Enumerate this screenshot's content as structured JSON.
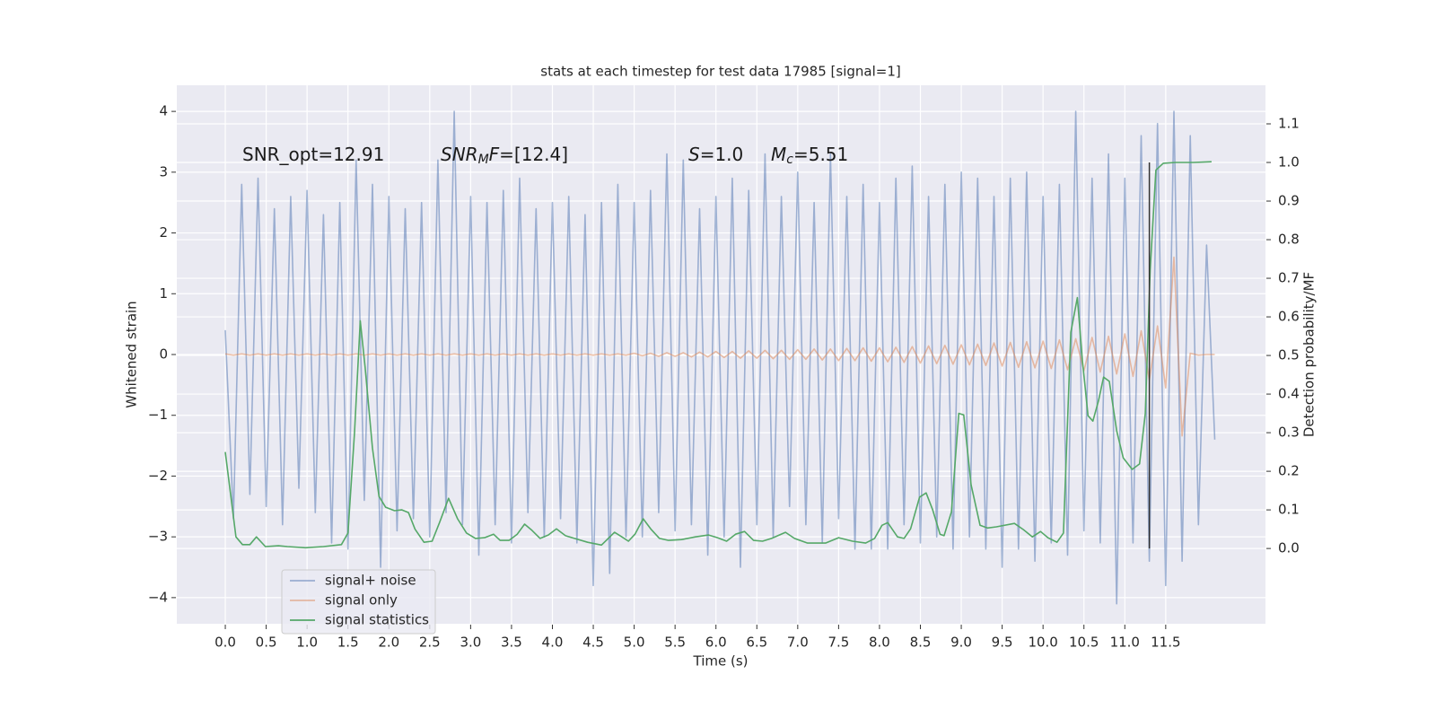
{
  "chart_data": {
    "type": "line",
    "title": "stats at each timestep for test data 17985 [signal=1]",
    "x_label": "Time (s)",
    "y_label": "Whitened strain",
    "y2_label": "Detection probability/MF",
    "grid": true,
    "legend": "lower left",
    "xlim": [
      -0.593,
      12.72
    ],
    "ylim": [
      -4.43,
      4.43
    ],
    "y2lim": [
      -0.195,
      1.2
    ],
    "xticks": [
      {
        "value": 0,
        "label": "0.0"
      },
      0.5,
      {
        "value": 1,
        "label": "1.0"
      },
      1.5,
      {
        "value": 2,
        "label": "2.0"
      },
      2.5,
      {
        "value": 3,
        "label": "3.0"
      },
      3.5,
      {
        "value": 4,
        "label": "4.0"
      },
      4.5,
      {
        "value": 5,
        "label": "5.0"
      },
      5.5,
      {
        "value": 6,
        "label": "6.0"
      },
      6.5,
      {
        "value": 7,
        "label": "7.0"
      },
      7.5,
      {
        "value": 8,
        "label": "8.0"
      },
      8.5,
      {
        "value": 9,
        "label": "9.0"
      },
      9.5,
      {
        "value": 10,
        "label": "10.0"
      },
      10.5,
      {
        "value": 11,
        "label": "11.0"
      },
      11.5
    ],
    "yticks": [
      {
        "value": -4,
        "label": "−4"
      },
      {
        "value": -3,
        "label": "−3"
      },
      {
        "value": -2,
        "label": "−2"
      },
      {
        "value": -1,
        "label": "−1"
      },
      0,
      1,
      2,
      3,
      4
    ],
    "y2ticks": [
      {
        "value": 0,
        "label": "0.0"
      },
      0.1,
      0.2,
      0.3,
      0.4,
      0.5,
      0.6,
      0.7,
      0.8,
      0.9,
      {
        "value": 1,
        "label": "1.0"
      },
      1.1
    ],
    "x": [
      0,
      0.1,
      0.2,
      0.3,
      0.4,
      0.5,
      0.6,
      0.7,
      0.8,
      0.9,
      1,
      1.1,
      1.2,
      1.3,
      1.4,
      1.5,
      1.6,
      1.7,
      1.8,
      1.9,
      2,
      2.1,
      2.2,
      2.3,
      2.4,
      2.5,
      2.6,
      2.7,
      2.8,
      2.9,
      3,
      3.1,
      3.2,
      3.3,
      3.4,
      3.5,
      3.6,
      3.7,
      3.8,
      3.9,
      4,
      4.1,
      4.2,
      4.3,
      4.4,
      4.5,
      4.6,
      4.7,
      4.8,
      4.9,
      5,
      5.1,
      5.2,
      5.3,
      5.4,
      5.5,
      5.6,
      5.7,
      5.8,
      5.9,
      6,
      6.1,
      6.2,
      6.3,
      6.4,
      6.5,
      6.6,
      6.7,
      6.8,
      6.9,
      7,
      7.1,
      7.2,
      7.3,
      7.4,
      7.5,
      7.6,
      7.7,
      7.8,
      7.9,
      8,
      8.1,
      8.2,
      8.3,
      8.4,
      8.5,
      8.6,
      8.7,
      8.8,
      8.9,
      9,
      9.1,
      9.2,
      9.3,
      9.4,
      9.5,
      9.6,
      9.7,
      9.8,
      9.9,
      10,
      10.1,
      10.2,
      10.3,
      10.4,
      10.5,
      10.6,
      10.7,
      10.8,
      10.9,
      11,
      11.1,
      11.2,
      11.3,
      11.4,
      11.5,
      11.6,
      11.7,
      11.8,
      11.9,
      12,
      12.1
    ],
    "series": [
      {
        "name": "signal+ noise",
        "color": "#4c72b0",
        "alpha": 0.5,
        "values": [
          0.4,
          -2.7,
          2.8,
          -2.3,
          2.9,
          -2.5,
          2.4,
          -2.8,
          2.6,
          -2.2,
          2.7,
          -2.6,
          2.3,
          -3.1,
          2.5,
          -3.2,
          3.2,
          -2.4,
          2.8,
          -3.5,
          2.6,
          -2.9,
          2.4,
          -2.7,
          2.5,
          -3.0,
          3.2,
          -2.6,
          4.0,
          -2.8,
          2.6,
          -3.3,
          2.5,
          -2.8,
          2.7,
          -3.1,
          2.9,
          -2.6,
          2.4,
          -3.0,
          2.5,
          -2.7,
          2.6,
          -3.1,
          2.3,
          -3.8,
          2.5,
          -3.6,
          2.8,
          -3.0,
          2.5,
          -3.0,
          2.7,
          -2.6,
          3.3,
          -2.9,
          3.2,
          -2.8,
          2.4,
          -3.3,
          2.6,
          -3.0,
          2.9,
          -3.5,
          2.7,
          -2.8,
          3.3,
          -3.0,
          2.6,
          -2.5,
          3.0,
          -2.8,
          2.5,
          -3.1,
          3.3,
          -2.7,
          2.6,
          -3.2,
          2.8,
          -3.2,
          2.5,
          -3.2,
          2.9,
          -2.8,
          3.1,
          -3.1,
          2.6,
          -3.0,
          2.8,
          -3.2,
          3.0,
          -3.0,
          2.9,
          -3.2,
          2.6,
          -3.5,
          2.9,
          -3.2,
          3.0,
          -3.4,
          2.6,
          -3.1,
          2.8,
          -3.3,
          4.0,
          -2.9,
          2.9,
          -3.1,
          3.3,
          -4.1,
          2.9,
          -3.1,
          3.6,
          -3.4,
          3.8,
          -3.8,
          4.0,
          -3.4,
          3.6,
          -2.8,
          1.8,
          -1.4
        ]
      },
      {
        "name": "signal only",
        "color": "#dd8452",
        "alpha": 0.5,
        "values": [
          0.01,
          -0.01,
          0.01,
          -0.01,
          0.01,
          -0.01,
          0.01,
          -0.01,
          0.01,
          -0.01,
          0.01,
          -0.01,
          0.01,
          -0.01,
          0.01,
          -0.01,
          0.01,
          -0.01,
          0.01,
          -0.01,
          0.01,
          -0.01,
          0.01,
          -0.01,
          0.01,
          -0.01,
          0.01,
          -0.01,
          0.01,
          -0.01,
          0.01,
          -0.01,
          0.01,
          -0.01,
          0.01,
          -0.01,
          0.01,
          -0.01,
          0.01,
          -0.01,
          0.01,
          -0.01,
          0.01,
          -0.01,
          0.01,
          -0.01,
          0.01,
          -0.01,
          0.01,
          -0.01,
          0.02,
          -0.02,
          0.02,
          -0.03,
          0.03,
          -0.03,
          0.03,
          -0.04,
          0.04,
          -0.04,
          0.05,
          -0.05,
          0.05,
          -0.06,
          0.06,
          -0.06,
          0.07,
          -0.07,
          0.07,
          -0.08,
          0.08,
          -0.08,
          0.09,
          -0.09,
          0.09,
          -0.1,
          0.1,
          -0.1,
          0.11,
          -0.11,
          0.11,
          -0.12,
          0.12,
          -0.13,
          0.13,
          -0.14,
          0.14,
          -0.15,
          0.15,
          -0.16,
          0.16,
          -0.17,
          0.17,
          -0.18,
          0.19,
          -0.19,
          0.2,
          -0.21,
          0.21,
          -0.22,
          0.22,
          -0.23,
          0.24,
          -0.25,
          0.26,
          -0.27,
          0.28,
          -0.29,
          0.3,
          -0.32,
          0.34,
          -0.36,
          0.39,
          -0.42,
          0.47,
          -0.55,
          1.6,
          -1.34,
          0.02,
          -0.01,
          0,
          0
        ]
      },
      {
        "name": "signal statistics",
        "color": "#55a868",
        "axis": "y2",
        "x": [
          0,
          0.13,
          0.21,
          0.3,
          0.38,
          0.49,
          0.65,
          0.76,
          0.98,
          1.2,
          1.42,
          1.5,
          1.58,
          1.65,
          1.71,
          1.8,
          1.88,
          1.96,
          2.07,
          2.16,
          2.24,
          2.32,
          2.43,
          2.53,
          2.62,
          2.73,
          2.84,
          2.95,
          3.06,
          3.17,
          3.28,
          3.36,
          3.47,
          3.57,
          3.66,
          3.75,
          3.85,
          3.95,
          4.05,
          4.16,
          4.27,
          4.43,
          4.6,
          4.76,
          4.85,
          4.93,
          5.01,
          5.11,
          5.21,
          5.31,
          5.42,
          5.58,
          5.75,
          5.91,
          6.02,
          6.13,
          6.24,
          6.35,
          6.46,
          6.57,
          6.68,
          6.85,
          6.96,
          7.12,
          7.34,
          7.5,
          7.67,
          7.83,
          7.94,
          8.03,
          8.1,
          8.22,
          8.3,
          8.38,
          8.49,
          8.57,
          8.65,
          8.74,
          8.79,
          8.88,
          8.97,
          9.03,
          9.12,
          9.23,
          9.32,
          9.43,
          9.65,
          9.76,
          9.87,
          9.97,
          10.06,
          10.17,
          10.25,
          10.34,
          10.42,
          10.48,
          10.55,
          10.61,
          10.68,
          10.74,
          10.81,
          10.9,
          10.98,
          11.09,
          11.18,
          11.25,
          11.31,
          11.38,
          11.47,
          11.62,
          11.84,
          12.06
        ],
        "values": [
          0.25,
          0.03,
          0.01,
          0.01,
          0.03,
          0.005,
          0.007,
          0.005,
          0.002,
          0.005,
          0.01,
          0.04,
          0.3,
          0.59,
          0.47,
          0.26,
          0.135,
          0.107,
          0.098,
          0.1,
          0.093,
          0.05,
          0.016,
          0.019,
          0.067,
          0.13,
          0.077,
          0.04,
          0.026,
          0.028,
          0.037,
          0.021,
          0.021,
          0.037,
          0.063,
          0.047,
          0.026,
          0.035,
          0.051,
          0.033,
          0.026,
          0.016,
          0.009,
          0.042,
          0.03,
          0.019,
          0.037,
          0.077,
          0.049,
          0.026,
          0.021,
          0.023,
          0.03,
          0.035,
          0.028,
          0.019,
          0.037,
          0.044,
          0.021,
          0.019,
          0.026,
          0.042,
          0.026,
          0.014,
          0.014,
          0.028,
          0.019,
          0.014,
          0.026,
          0.06,
          0.067,
          0.03,
          0.026,
          0.051,
          0.133,
          0.144,
          0.1,
          0.037,
          0.033,
          0.095,
          0.35,
          0.346,
          0.165,
          0.06,
          0.053,
          0.056,
          0.065,
          0.049,
          0.03,
          0.044,
          0.028,
          0.016,
          0.04,
          0.56,
          0.65,
          0.49,
          0.344,
          0.33,
          0.384,
          0.444,
          0.433,
          0.305,
          0.235,
          0.205,
          0.219,
          0.35,
          0.72,
          0.98,
          0.998,
          1.0,
          1.0,
          1.002
        ]
      }
    ],
    "vlines": [
      {
        "x": 11.3,
        "ymin": 0,
        "ymax": 1,
        "axis": "y2",
        "color": "#333333"
      }
    ],
    "annotations": [
      {
        "parts": [
          {
            "text": "SNR_opt=12.91"
          }
        ]
      },
      {
        "parts": [
          {
            "text": "SNR",
            "italic": true
          },
          {
            "text": "M",
            "italic": true,
            "sub": true
          },
          {
            "text": "F",
            "italic": true
          },
          {
            "text": "=[12.4]"
          }
        ]
      },
      {
        "parts": [
          {
            "text": "S",
            "italic": true
          },
          {
            "text": "=1.0"
          }
        ]
      },
      {
        "parts": [
          {
            "text": "M",
            "italic": true
          },
          {
            "text": "c",
            "italic": true,
            "sub": true
          },
          {
            "text": "=5.51"
          }
        ]
      }
    ]
  }
}
